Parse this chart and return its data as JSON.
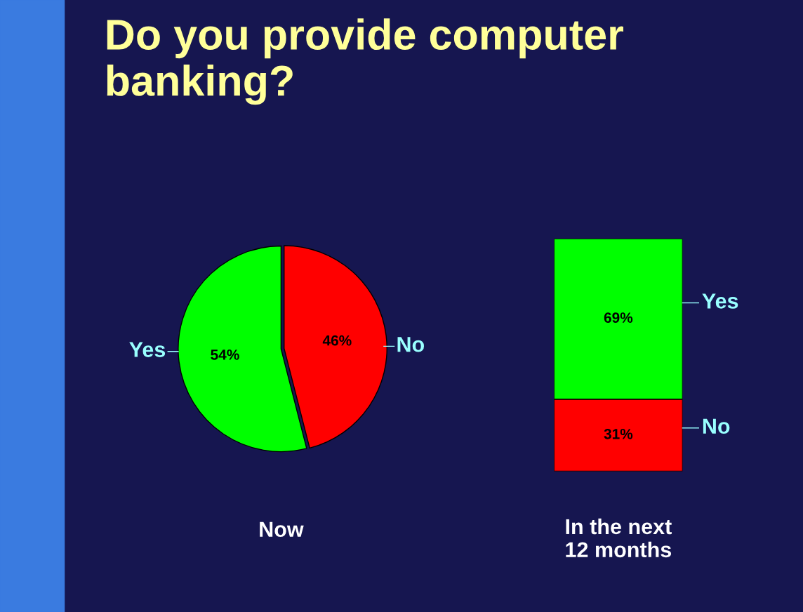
{
  "chart_data": [
    {
      "type": "pie",
      "title": "Do you provide computer banking?",
      "xlabel": "Now",
      "categories": [
        "Yes",
        "No"
      ],
      "values": [
        54,
        46
      ],
      "colors": [
        "#00ff00",
        "#ff0000"
      ],
      "value_labels": [
        "54%",
        "46%"
      ]
    },
    {
      "type": "bar",
      "stacked": true,
      "xlabel": "In the next\n12 months",
      "categories": [
        null
      ],
      "series": [
        {
          "name": "No",
          "color": "#ff0000",
          "values": [
            31
          ],
          "value_labels": [
            "31%"
          ]
        },
        {
          "name": "Yes",
          "color": "#00ff00",
          "values": [
            69
          ],
          "value_labels": [
            "69%"
          ]
        }
      ]
    }
  ]
}
